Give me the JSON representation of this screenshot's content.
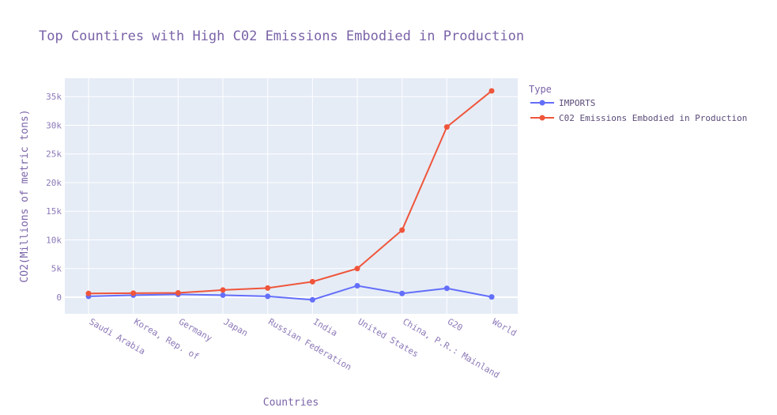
{
  "chart_data": {
    "type": "line",
    "title": "Top Countires with High C02 Emissions Embodied in Production",
    "xlabel": "Countries",
    "ylabel": "CO2(Millions of metric tons)",
    "categories": [
      "Saudi Arabia",
      "Korea, Rep. of",
      "Germany",
      "Japan",
      "Russian Federation",
      "India",
      "United States",
      "China, P.R.: Mainland",
      "G20",
      "World"
    ],
    "ylim": [
      -2900,
      38200
    ],
    "yticks": [
      0,
      5000,
      10000,
      15000,
      20000,
      25000,
      30000,
      35000
    ],
    "ytick_labels": [
      "0",
      "5k",
      "10k",
      "15k",
      "20k",
      "25k",
      "30k",
      "35k"
    ],
    "legend_title": "Type",
    "legend_position": "top-right",
    "grid": true,
    "series": [
      {
        "name": "IMPORTS",
        "color": "#636efa",
        "values": [
          150,
          350,
          500,
          350,
          150,
          -450,
          2000,
          650,
          1550,
          50
        ]
      },
      {
        "name": "C02 Emissions Embodied in Production",
        "color": "#ef553b",
        "values": [
          650,
          700,
          750,
          1250,
          1600,
          2700,
          5000,
          11700,
          29700,
          36000
        ]
      }
    ],
    "plot_bg": "#e5ecf6"
  }
}
